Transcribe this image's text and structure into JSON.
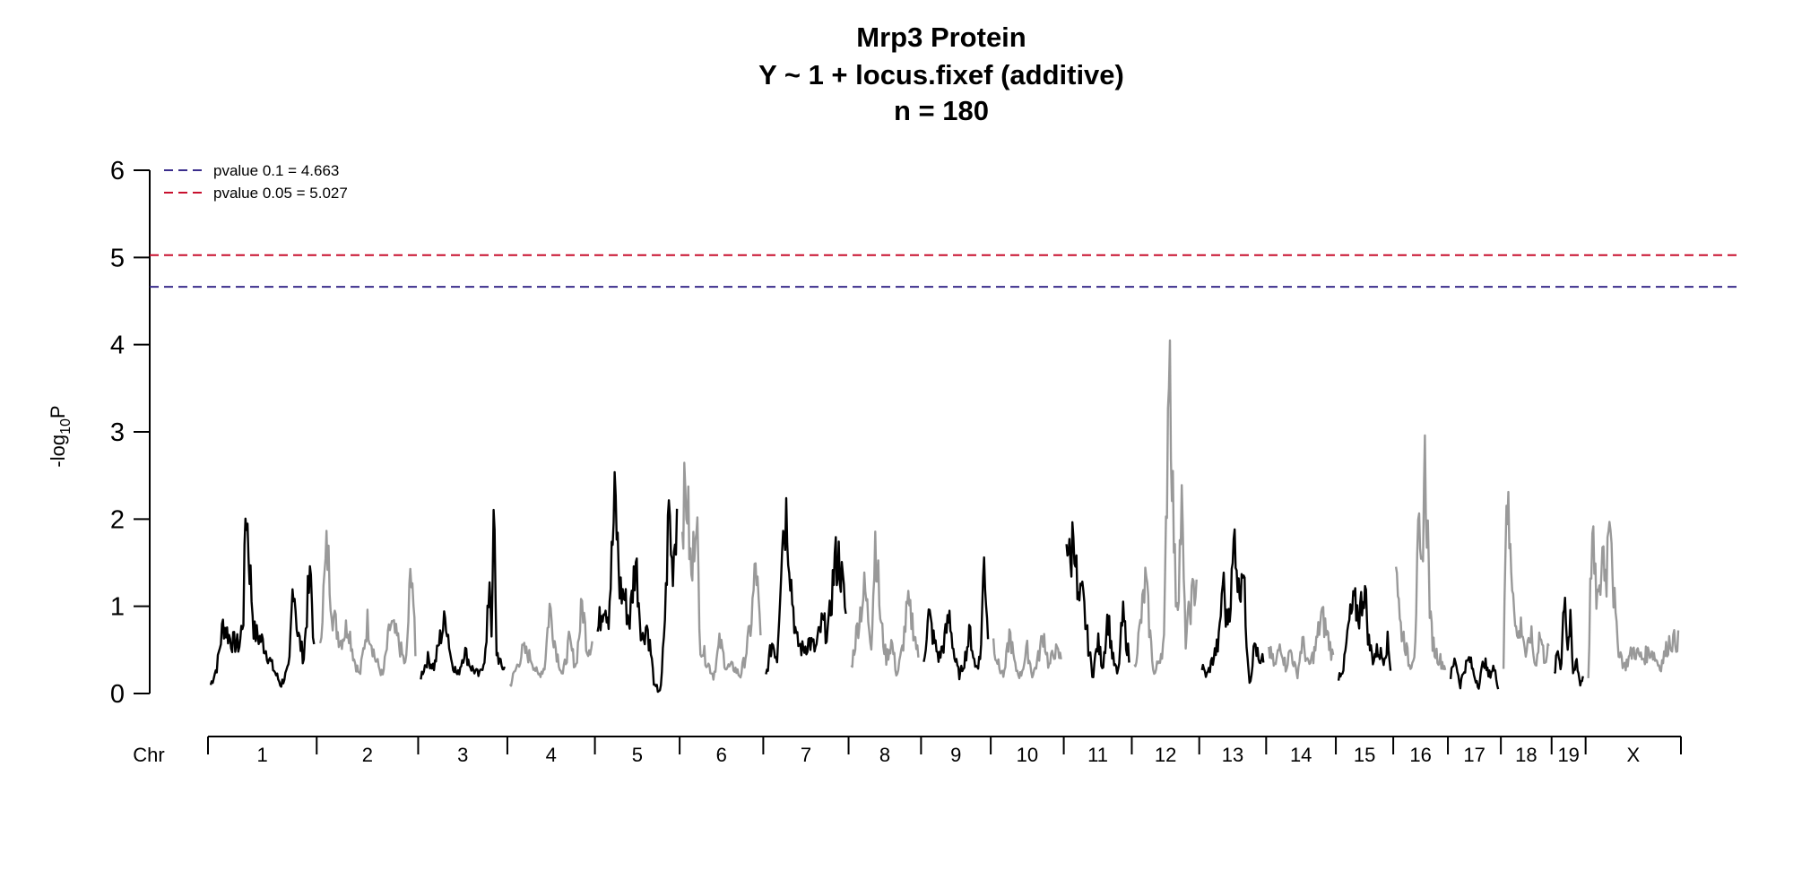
{
  "chart_data": {
    "type": "line",
    "title": "Mrp3 Protein",
    "subtitle": "Y ~ 1 + locus.fixef (additive)",
    "sample_size_label": "n = 180",
    "ylabel": "-log",
    "ylabel_subscript": "10",
    "ylabel_suffix": "P",
    "xlabel_prefix": "Chr",
    "ylim": [
      0,
      6
    ],
    "yticks": [
      "0",
      "1",
      "2",
      "3",
      "4",
      "5",
      "6"
    ],
    "grid": false,
    "legend_position": "top-left",
    "colors": {
      "odd_chr": "#000000",
      "even_chr": "#999999",
      "threshold_0_1": "#3a2d8c",
      "threshold_0_05": "#c8102e"
    },
    "thresholds": [
      {
        "label": "pvalue 0.1 = 4.663",
        "value": 4.663,
        "color": "#3a2d8c"
      },
      {
        "label": "pvalue 0.05 = 5.027",
        "value": 5.027,
        "color": "#c8102e"
      }
    ],
    "chromosomes": [
      {
        "name": "1",
        "size": 195,
        "peaks": [
          [
            0.0,
            0.1
          ],
          [
            0.06,
            0.3
          ],
          [
            0.12,
            0.8
          ],
          [
            0.2,
            0.6
          ],
          [
            0.28,
            0.55
          ],
          [
            0.32,
            0.95
          ],
          [
            0.34,
            2.28
          ],
          [
            0.37,
            1.6
          ],
          [
            0.42,
            0.7
          ],
          [
            0.5,
            0.6
          ],
          [
            0.6,
            0.3
          ],
          [
            0.68,
            0.1
          ],
          [
            0.76,
            0.3
          ],
          [
            0.8,
            1.38
          ],
          [
            0.84,
            0.7
          ],
          [
            0.9,
            0.4
          ],
          [
            0.94,
            1.1
          ],
          [
            0.97,
            1.32
          ],
          [
            1.0,
            0.5
          ]
        ]
      },
      {
        "name": "2",
        "size": 182,
        "peaks": [
          [
            0.0,
            0.5
          ],
          [
            0.08,
            1.68
          ],
          [
            0.14,
            0.9
          ],
          [
            0.22,
            0.6
          ],
          [
            0.3,
            0.8
          ],
          [
            0.36,
            0.4
          ],
          [
            0.42,
            0.2
          ],
          [
            0.5,
            0.82
          ],
          [
            0.58,
            0.4
          ],
          [
            0.66,
            0.2
          ],
          [
            0.74,
            0.8
          ],
          [
            0.82,
            0.6
          ],
          [
            0.9,
            0.3
          ],
          [
            0.96,
            1.58
          ],
          [
            1.0,
            0.4
          ]
        ]
      },
      {
        "name": "3",
        "size": 160,
        "peaks": [
          [
            0.0,
            0.2
          ],
          [
            0.08,
            0.4
          ],
          [
            0.16,
            0.3
          ],
          [
            0.22,
            0.6
          ],
          [
            0.3,
            0.88
          ],
          [
            0.36,
            0.4
          ],
          [
            0.44,
            0.2
          ],
          [
            0.52,
            0.5
          ],
          [
            0.6,
            0.3
          ],
          [
            0.7,
            0.2
          ],
          [
            0.78,
            0.5
          ],
          [
            0.82,
            1.38
          ],
          [
            0.85,
            0.6
          ],
          [
            0.87,
            2.2
          ],
          [
            0.9,
            0.5
          ],
          [
            0.96,
            0.3
          ],
          [
            1.0,
            0.3
          ]
        ]
      },
      {
        "name": "4",
        "size": 157,
        "peaks": [
          [
            0.0,
            0.1
          ],
          [
            0.08,
            0.3
          ],
          [
            0.16,
            0.5
          ],
          [
            0.26,
            0.4
          ],
          [
            0.34,
            0.2
          ],
          [
            0.42,
            0.3
          ],
          [
            0.48,
            1.0
          ],
          [
            0.56,
            0.5
          ],
          [
            0.64,
            0.2
          ],
          [
            0.72,
            0.6
          ],
          [
            0.8,
            0.3
          ],
          [
            0.88,
            1.05
          ],
          [
            0.94,
            0.5
          ],
          [
            1.0,
            0.6
          ]
        ]
      },
      {
        "name": "5",
        "size": 152,
        "peaks": [
          [
            0.0,
            0.7
          ],
          [
            0.08,
            1.1
          ],
          [
            0.14,
            0.9
          ],
          [
            0.22,
            2.24
          ],
          [
            0.28,
            1.2
          ],
          [
            0.34,
            1.1
          ],
          [
            0.4,
            0.8
          ],
          [
            0.48,
            1.55
          ],
          [
            0.56,
            0.6
          ],
          [
            0.62,
            0.8
          ],
          [
            0.68,
            0.4
          ],
          [
            0.72,
            0.05
          ],
          [
            0.8,
            0.05
          ],
          [
            0.86,
            1.1
          ],
          [
            0.9,
            2.18
          ],
          [
            0.94,
            1.4
          ],
          [
            1.0,
            2.1
          ]
        ]
      },
      {
        "name": "6",
        "size": 150,
        "peaks": [
          [
            0.0,
            2.1
          ],
          [
            0.06,
            2.28
          ],
          [
            0.12,
            1.2
          ],
          [
            0.18,
            2.36
          ],
          [
            0.22,
            0.6
          ],
          [
            0.3,
            0.4
          ],
          [
            0.4,
            0.2
          ],
          [
            0.48,
            0.6
          ],
          [
            0.56,
            0.3
          ],
          [
            0.66,
            0.3
          ],
          [
            0.74,
            0.2
          ],
          [
            0.8,
            0.4
          ],
          [
            0.88,
            0.8
          ],
          [
            0.94,
            1.5
          ],
          [
            1.0,
            0.6
          ]
        ]
      },
      {
        "name": "7",
        "size": 153,
        "peaks": [
          [
            0.0,
            0.2
          ],
          [
            0.08,
            0.6
          ],
          [
            0.14,
            0.4
          ],
          [
            0.2,
            1.8
          ],
          [
            0.26,
            2.1
          ],
          [
            0.32,
            1.2
          ],
          [
            0.38,
            0.6
          ],
          [
            0.46,
            0.5
          ],
          [
            0.54,
            0.6
          ],
          [
            0.62,
            0.5
          ],
          [
            0.7,
            0.8
          ],
          [
            0.78,
            0.7
          ],
          [
            0.86,
            1.5
          ],
          [
            0.92,
            1.54
          ],
          [
            1.0,
            0.9
          ]
        ]
      },
      {
        "name": "8",
        "size": 130,
        "peaks": [
          [
            0.0,
            0.3
          ],
          [
            0.1,
            0.8
          ],
          [
            0.2,
            1.2
          ],
          [
            0.3,
            0.6
          ],
          [
            0.36,
            1.82
          ],
          [
            0.44,
            0.8
          ],
          [
            0.52,
            0.4
          ],
          [
            0.6,
            0.6
          ],
          [
            0.68,
            0.2
          ],
          [
            0.76,
            0.5
          ],
          [
            0.84,
            1.0
          ],
          [
            0.92,
            0.8
          ],
          [
            1.0,
            0.4
          ]
        ]
      },
      {
        "name": "9",
        "size": 125,
        "peaks": [
          [
            0.0,
            0.4
          ],
          [
            0.08,
            0.9
          ],
          [
            0.16,
            0.6
          ],
          [
            0.24,
            0.4
          ],
          [
            0.32,
            0.6
          ],
          [
            0.4,
            0.9
          ],
          [
            0.48,
            0.4
          ],
          [
            0.56,
            0.2
          ],
          [
            0.64,
            0.4
          ],
          [
            0.72,
            0.7
          ],
          [
            0.8,
            0.3
          ],
          [
            0.88,
            0.4
          ],
          [
            0.94,
            1.56
          ],
          [
            1.0,
            0.7
          ]
        ]
      },
      {
        "name": "10",
        "size": 131,
        "peaks": [
          [
            0.0,
            0.6
          ],
          [
            0.08,
            0.3
          ],
          [
            0.16,
            0.2
          ],
          [
            0.24,
            0.7
          ],
          [
            0.32,
            0.3
          ],
          [
            0.4,
            0.2
          ],
          [
            0.5,
            0.5
          ],
          [
            0.58,
            0.2
          ],
          [
            0.66,
            0.4
          ],
          [
            0.74,
            0.7
          ],
          [
            0.82,
            0.3
          ],
          [
            0.9,
            0.5
          ],
          [
            1.0,
            0.4
          ]
        ]
      },
      {
        "name": "11",
        "size": 122,
        "peaks": [
          [
            0.0,
            1.95
          ],
          [
            0.06,
            1.4
          ],
          [
            0.12,
            2.02
          ],
          [
            0.18,
            1.0
          ],
          [
            0.26,
            1.1
          ],
          [
            0.34,
            0.6
          ],
          [
            0.42,
            0.2
          ],
          [
            0.5,
            0.6
          ],
          [
            0.58,
            0.3
          ],
          [
            0.66,
            0.9
          ],
          [
            0.74,
            0.4
          ],
          [
            0.82,
            0.2
          ],
          [
            0.9,
            0.9
          ],
          [
            1.0,
            0.4
          ]
        ]
      },
      {
        "name": "12",
        "size": 121,
        "peaks": [
          [
            0.0,
            0.3
          ],
          [
            0.1,
            0.8
          ],
          [
            0.18,
            1.3
          ],
          [
            0.26,
            0.6
          ],
          [
            0.32,
            0.2
          ],
          [
            0.4,
            0.4
          ],
          [
            0.48,
            0.6
          ],
          [
            0.52,
            2.3
          ],
          [
            0.56,
            4.38
          ],
          [
            0.58,
            3.5
          ],
          [
            0.62,
            2.2
          ],
          [
            0.66,
            1.2
          ],
          [
            0.7,
            1.1
          ],
          [
            0.76,
            2.15
          ],
          [
            0.82,
            0.6
          ],
          [
            0.9,
            1.0
          ],
          [
            1.0,
            1.3
          ]
        ]
      },
      {
        "name": "13",
        "size": 120,
        "peaks": [
          [
            0.0,
            0.3
          ],
          [
            0.08,
            0.2
          ],
          [
            0.18,
            0.4
          ],
          [
            0.28,
            0.6
          ],
          [
            0.34,
            1.34
          ],
          [
            0.4,
            0.8
          ],
          [
            0.48,
            1.2
          ],
          [
            0.54,
            1.9
          ],
          [
            0.6,
            1.1
          ],
          [
            0.66,
            1.6
          ],
          [
            0.72,
            0.7
          ],
          [
            0.78,
            0.1
          ],
          [
            0.86,
            0.6
          ],
          [
            0.94,
            0.3
          ],
          [
            1.0,
            0.4
          ]
        ]
      },
      {
        "name": "14",
        "size": 125,
        "peaks": [
          [
            0.0,
            0.5
          ],
          [
            0.1,
            0.3
          ],
          [
            0.18,
            0.6
          ],
          [
            0.26,
            0.3
          ],
          [
            0.34,
            0.5
          ],
          [
            0.44,
            0.2
          ],
          [
            0.52,
            0.6
          ],
          [
            0.62,
            0.3
          ],
          [
            0.72,
            0.5
          ],
          [
            0.82,
            0.9
          ],
          [
            0.9,
            0.7
          ],
          [
            1.0,
            0.4
          ]
        ]
      },
      {
        "name": "15",
        "size": 103,
        "peaks": [
          [
            0.0,
            0.2
          ],
          [
            0.1,
            0.3
          ],
          [
            0.2,
            0.8
          ],
          [
            0.3,
            1.02
          ],
          [
            0.4,
            0.9
          ],
          [
            0.5,
            1.25
          ],
          [
            0.58,
            0.6
          ],
          [
            0.66,
            0.4
          ],
          [
            0.76,
            0.5
          ],
          [
            0.86,
            0.4
          ],
          [
            0.94,
            0.6
          ],
          [
            1.0,
            0.3
          ]
        ]
      },
      {
        "name": "16",
        "size": 98,
        "peaks": [
          [
            0.0,
            1.64
          ],
          [
            0.08,
            0.8
          ],
          [
            0.18,
            0.6
          ],
          [
            0.28,
            0.3
          ],
          [
            0.38,
            0.5
          ],
          [
            0.46,
            1.8
          ],
          [
            0.52,
            1.2
          ],
          [
            0.58,
            2.7
          ],
          [
            0.64,
            1.9
          ],
          [
            0.7,
            0.8
          ],
          [
            0.78,
            0.5
          ],
          [
            0.88,
            0.4
          ],
          [
            1.0,
            0.3
          ]
        ]
      },
      {
        "name": "17",
        "size": 95,
        "peaks": [
          [
            0.0,
            0.2
          ],
          [
            0.1,
            0.4
          ],
          [
            0.2,
            0.1
          ],
          [
            0.3,
            0.3
          ],
          [
            0.4,
            0.4
          ],
          [
            0.5,
            0.2
          ],
          [
            0.6,
            0.1
          ],
          [
            0.7,
            0.4
          ],
          [
            0.8,
            0.2
          ],
          [
            0.9,
            0.3
          ],
          [
            1.0,
            0.1
          ]
        ]
      },
      {
        "name": "18",
        "size": 91,
        "peaks": [
          [
            0.0,
            0.3
          ],
          [
            0.06,
            2.44
          ],
          [
            0.14,
            1.6
          ],
          [
            0.22,
            1.2
          ],
          [
            0.3,
            0.6
          ],
          [
            0.4,
            0.8
          ],
          [
            0.5,
            0.4
          ],
          [
            0.6,
            0.7
          ],
          [
            0.7,
            0.3
          ],
          [
            0.8,
            0.7
          ],
          [
            0.9,
            0.4
          ],
          [
            1.0,
            0.5
          ]
        ]
      },
      {
        "name": "19",
        "size": 61,
        "peaks": [
          [
            0.0,
            0.2
          ],
          [
            0.12,
            0.5
          ],
          [
            0.24,
            0.3
          ],
          [
            0.36,
            1.28
          ],
          [
            0.46,
            0.5
          ],
          [
            0.56,
            0.8
          ],
          [
            0.66,
            0.2
          ],
          [
            0.78,
            0.4
          ],
          [
            0.9,
            0.1
          ],
          [
            1.0,
            0.2
          ]
        ]
      },
      {
        "name": "X",
        "size": 171,
        "peaks": [
          [
            0.0,
            0.2
          ],
          [
            0.04,
            1.85
          ],
          [
            0.08,
            1.2
          ],
          [
            0.12,
            1.0
          ],
          [
            0.16,
            1.7
          ],
          [
            0.2,
            1.3
          ],
          [
            0.24,
            2.44
          ],
          [
            0.28,
            1.2
          ],
          [
            0.32,
            0.6
          ],
          [
            0.4,
            0.3
          ],
          [
            0.5,
            0.5
          ],
          [
            0.6,
            0.4
          ],
          [
            0.7,
            0.5
          ],
          [
            0.8,
            0.3
          ],
          [
            0.9,
            0.6
          ],
          [
            1.0,
            0.6
          ]
        ]
      }
    ]
  }
}
